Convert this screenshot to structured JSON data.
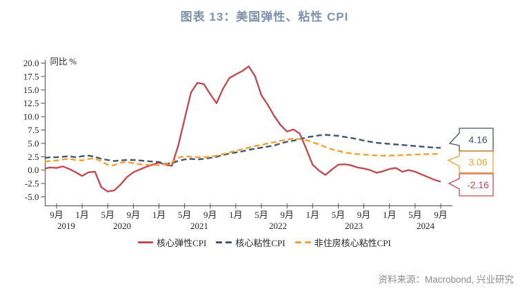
{
  "header": {
    "title": "图表 13：美国弹性、粘性 CPI"
  },
  "footer": {
    "source": "资料来源：Macrobond, 兴业研究"
  },
  "colors": {
    "flexible_red": "#C24A52",
    "sticky_navy": "#44546C",
    "sticky_exshelter_orange": "#EFA22E",
    "title_blue_gray": "#7E92AD",
    "axis": "#4D4D4D",
    "tick_text": "#262626",
    "source_gray": "#8C8C8C"
  },
  "chart_data": {
    "type": "line",
    "title": "图表 13：美国弹性、粘性 CPI",
    "ylabel": "同比 %",
    "xlabel": "",
    "ylim": [
      -5.0,
      20.0
    ],
    "grid": false,
    "legend_position": "bottom",
    "y_ticks": [
      "20.0",
      "17.5",
      "15.0",
      "12.5",
      "10.0",
      "7.5",
      "5.0",
      "2.5",
      "0.0",
      "-2.5",
      "-5.0"
    ],
    "y_tick_values": [
      20.0,
      17.5,
      15.0,
      12.5,
      10.0,
      7.5,
      5.0,
      2.5,
      0.0,
      -2.5,
      -5.0
    ],
    "x_start": "2019-07",
    "x_end": "2024-09",
    "frequency": "monthly",
    "x_tick_labels": [
      "9月",
      "1月",
      "5月",
      "9月",
      "1月",
      "5月",
      "9月",
      "1月",
      "5月",
      "9月",
      "1月",
      "5月",
      "9月",
      "1月",
      "5月",
      "9月"
    ],
    "x_year_labels": [
      "2019",
      "2020",
      "2021",
      "2022",
      "2023",
      "2024"
    ],
    "series": [
      {
        "name": "核心弹性CPI",
        "color": "#C24A52",
        "style": "solid",
        "end_label": "-2.16",
        "values": [
          0.3,
          0.5,
          0.4,
          0.7,
          0.2,
          -0.4,
          -1.1,
          -0.4,
          -0.3,
          -3.2,
          -4.0,
          -3.8,
          -2.7,
          -1.3,
          -0.4,
          0.1,
          0.6,
          1.0,
          1.4,
          1.0,
          0.8,
          4.5,
          9.5,
          14.5,
          16.3,
          16.1,
          14.2,
          12.5,
          15.2,
          17.2,
          17.9,
          18.5,
          19.4,
          17.6,
          14.0,
          12.2,
          10.1,
          8.4,
          7.2,
          7.6,
          6.8,
          4.0,
          1.0,
          -0.1,
          -0.9,
          0.1,
          1.0,
          1.1,
          0.9,
          0.5,
          0.3,
          0.0,
          -0.5,
          -0.2,
          0.2,
          0.4,
          -0.3,
          0.0,
          -0.3,
          -0.8,
          -1.3,
          -1.8,
          -2.16
        ]
      },
      {
        "name": "核心粘性CPI",
        "color": "#44546C",
        "style": "dashed",
        "end_label": "4.16",
        "values": [
          2.3,
          2.4,
          2.4,
          2.5,
          2.6,
          2.4,
          2.6,
          2.7,
          2.5,
          2.1,
          1.9,
          1.7,
          1.8,
          1.9,
          1.9,
          1.8,
          1.7,
          1.6,
          1.5,
          1.2,
          1.3,
          1.7,
          2.0,
          2.1,
          2.0,
          2.1,
          2.3,
          2.5,
          2.8,
          3.1,
          3.3,
          3.5,
          3.8,
          4.0,
          4.2,
          4.4,
          4.6,
          5.0,
          5.3,
          5.5,
          5.8,
          6.1,
          6.3,
          6.5,
          6.6,
          6.5,
          6.4,
          6.2,
          6.0,
          5.8,
          5.5,
          5.3,
          5.1,
          5.0,
          4.9,
          4.8,
          4.7,
          4.6,
          4.5,
          4.4,
          4.3,
          4.2,
          4.16
        ]
      },
      {
        "name": "非住房核心粘性CPI",
        "color": "#EFA22E",
        "style": "dashed",
        "end_label": "3.06",
        "values": [
          1.6,
          1.7,
          1.8,
          2.0,
          2.1,
          1.9,
          1.8,
          2.1,
          2.2,
          1.6,
          1.0,
          0.9,
          1.4,
          1.5,
          1.3,
          1.1,
          1.0,
          1.0,
          0.9,
          1.1,
          1.4,
          2.3,
          2.6,
          2.5,
          2.4,
          2.4,
          2.5,
          2.7,
          3.0,
          3.3,
          3.6,
          3.9,
          4.2,
          4.5,
          4.7,
          5.0,
          5.2,
          5.5,
          5.7,
          5.9,
          5.8,
          5.6,
          5.2,
          4.8,
          4.3,
          3.9,
          3.6,
          3.3,
          3.1,
          3.0,
          2.9,
          2.8,
          2.75,
          2.7,
          2.7,
          2.75,
          2.8,
          2.85,
          2.9,
          2.95,
          3.0,
          3.0,
          3.06
        ]
      }
    ],
    "end_callouts": [
      {
        "label": "4.16",
        "series": "核心粘性CPI"
      },
      {
        "label": "3.06",
        "series": "非住房核心粘性CPI"
      },
      {
        "label": "-2.16",
        "series": "核心弹性CPI"
      }
    ]
  }
}
